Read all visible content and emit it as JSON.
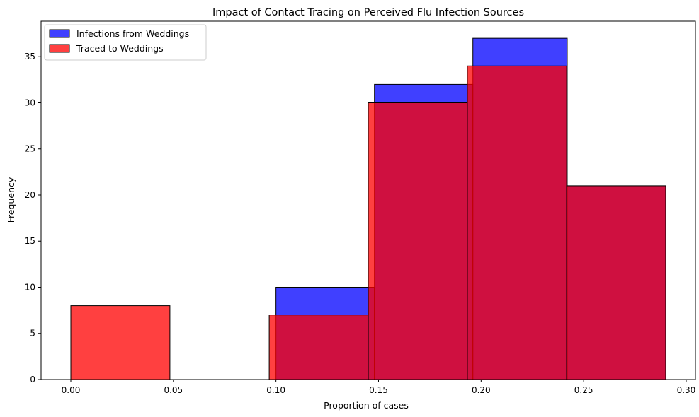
{
  "chart_data": {
    "type": "histogram",
    "title": "Impact of Contact Tracing on Perceived Flu Infection Sources",
    "xlabel": "Proportion of cases",
    "ylabel": "Frequency",
    "xlim": [
      -0.0145,
      0.3045
    ],
    "ylim": [
      0,
      38.85
    ],
    "xticks": [
      "0.00",
      "0.05",
      "0.10",
      "0.15",
      "0.20",
      "0.25",
      "0.30"
    ],
    "yticks": [
      "0",
      "5",
      "10",
      "15",
      "20",
      "25",
      "30",
      "35"
    ],
    "grid": false,
    "legend_position": "top-left",
    "series": [
      {
        "name": "Infections from Weddings",
        "color": "#0000ff",
        "bins": [
          {
            "x0": 0.1,
            "x1": 0.148,
            "value": 10
          },
          {
            "x0": 0.148,
            "x1": 0.196,
            "value": 32
          },
          {
            "x0": 0.196,
            "x1": 0.242,
            "value": 37
          },
          {
            "x0": 0.242,
            "x1": 0.29,
            "value": 21
          }
        ]
      },
      {
        "name": "Traced to Weddings",
        "color": "#ff0000",
        "bins": [
          {
            "x0": 0.0,
            "x1": 0.0483,
            "value": 8
          },
          {
            "x0": 0.0967,
            "x1": 0.145,
            "value": 7
          },
          {
            "x0": 0.145,
            "x1": 0.1933,
            "value": 30
          },
          {
            "x0": 0.1933,
            "x1": 0.2417,
            "value": 34
          },
          {
            "x0": 0.2417,
            "x1": 0.29,
            "value": 21
          }
        ]
      }
    ]
  }
}
